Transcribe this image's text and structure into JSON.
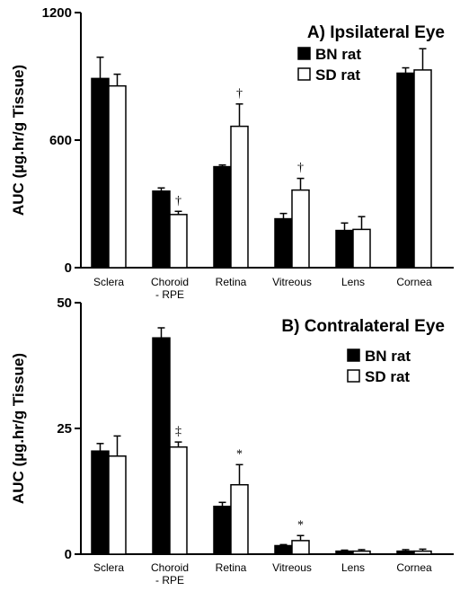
{
  "chart_data": [
    {
      "type": "bar",
      "title": "A) Ipsilateral Eye",
      "ylabel": "AUC (µg.hr/g Tissue)",
      "ylim": [
        0,
        1200
      ],
      "yticks": [
        0,
        600,
        1200
      ],
      "categories": [
        [
          "Sclera"
        ],
        [
          "Choroid",
          "- RPE"
        ],
        [
          "Retina"
        ],
        [
          "Vitreous"
        ],
        [
          "Lens"
        ],
        [
          "Cornea"
        ]
      ],
      "series": [
        {
          "name": "BN rat",
          "color": "#000000",
          "values": [
            890,
            360,
            475,
            230,
            175,
            915
          ],
          "errors": [
            100,
            15,
            8,
            25,
            35,
            25
          ]
        },
        {
          "name": "SD rat",
          "color": "#ffffff",
          "values": [
            855,
            250,
            665,
            365,
            180,
            930
          ],
          "errors": [
            55,
            15,
            105,
            55,
            60,
            100
          ]
        }
      ],
      "annotations": [
        {
          "series": 1,
          "category": 1,
          "text": "†"
        },
        {
          "series": 1,
          "category": 2,
          "text": "†"
        },
        {
          "series": 1,
          "category": 3,
          "text": "†"
        }
      ],
      "legend": "top-right"
    },
    {
      "type": "bar",
      "title": "B) Contralateral Eye",
      "ylabel": "AUC (µg.hr/g Tissue)",
      "ylim": [
        0,
        50
      ],
      "yticks": [
        0,
        25,
        50
      ],
      "categories": [
        [
          "Sclera"
        ],
        [
          "Choroid",
          "- RPE"
        ],
        [
          "Retina"
        ],
        [
          "Vitreous"
        ],
        [
          "Lens"
        ],
        [
          "Cornea"
        ]
      ],
      "series": [
        {
          "name": "BN rat",
          "color": "#000000",
          "values": [
            20.5,
            43,
            9.5,
            1.7,
            0.6,
            0.6
          ],
          "errors": [
            1.5,
            2,
            0.8,
            0.2,
            0.2,
            0.3
          ]
        },
        {
          "name": "SD rat",
          "color": "#ffffff",
          "values": [
            19.5,
            21.3,
            13.8,
            2.7,
            0.6,
            0.6
          ],
          "errors": [
            4,
            1,
            4,
            1,
            0.3,
            0.4
          ]
        }
      ],
      "annotations": [
        {
          "series": 1,
          "category": 1,
          "text": "‡"
        },
        {
          "series": 1,
          "category": 2,
          "text": "*"
        },
        {
          "series": 1,
          "category": 3,
          "text": "*"
        }
      ],
      "legend": "top-right"
    }
  ]
}
